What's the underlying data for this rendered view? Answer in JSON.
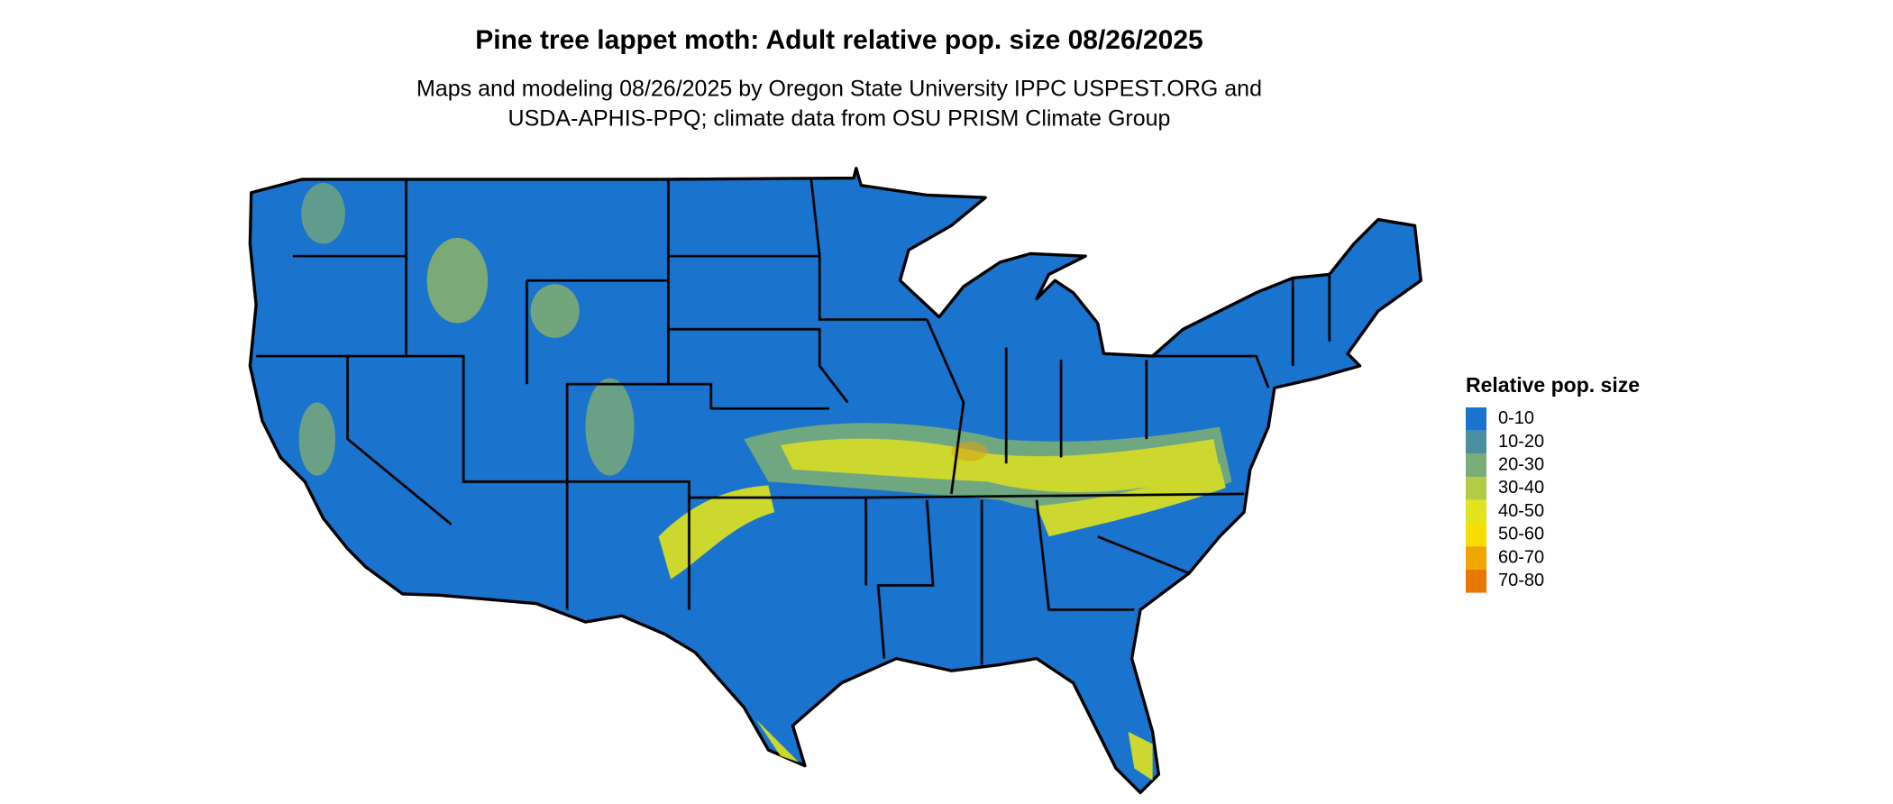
{
  "title": "Pine tree lappet moth: Adult relative pop. size 08/26/2025",
  "subtitle": [
    "Maps and modeling 08/26/2025 by Oregon State University IPPC USPEST.ORG and",
    "USDA-APHIS-PPQ; climate data from OSU PRISM Climate Group"
  ],
  "legend": {
    "title": "Relative pop. size",
    "items": [
      {
        "label": "0-10",
        "color": "#1a73cc"
      },
      {
        "label": "10-20",
        "color": "#4a8fa0"
      },
      {
        "label": "20-30",
        "color": "#7aad78"
      },
      {
        "label": "30-40",
        "color": "#b2cc46"
      },
      {
        "label": "40-50",
        "color": "#e2e41e"
      },
      {
        "label": "50-60",
        "color": "#f6df00"
      },
      {
        "label": "60-70",
        "color": "#f0a800"
      },
      {
        "label": "70-80",
        "color": "#e87800"
      }
    ]
  }
}
